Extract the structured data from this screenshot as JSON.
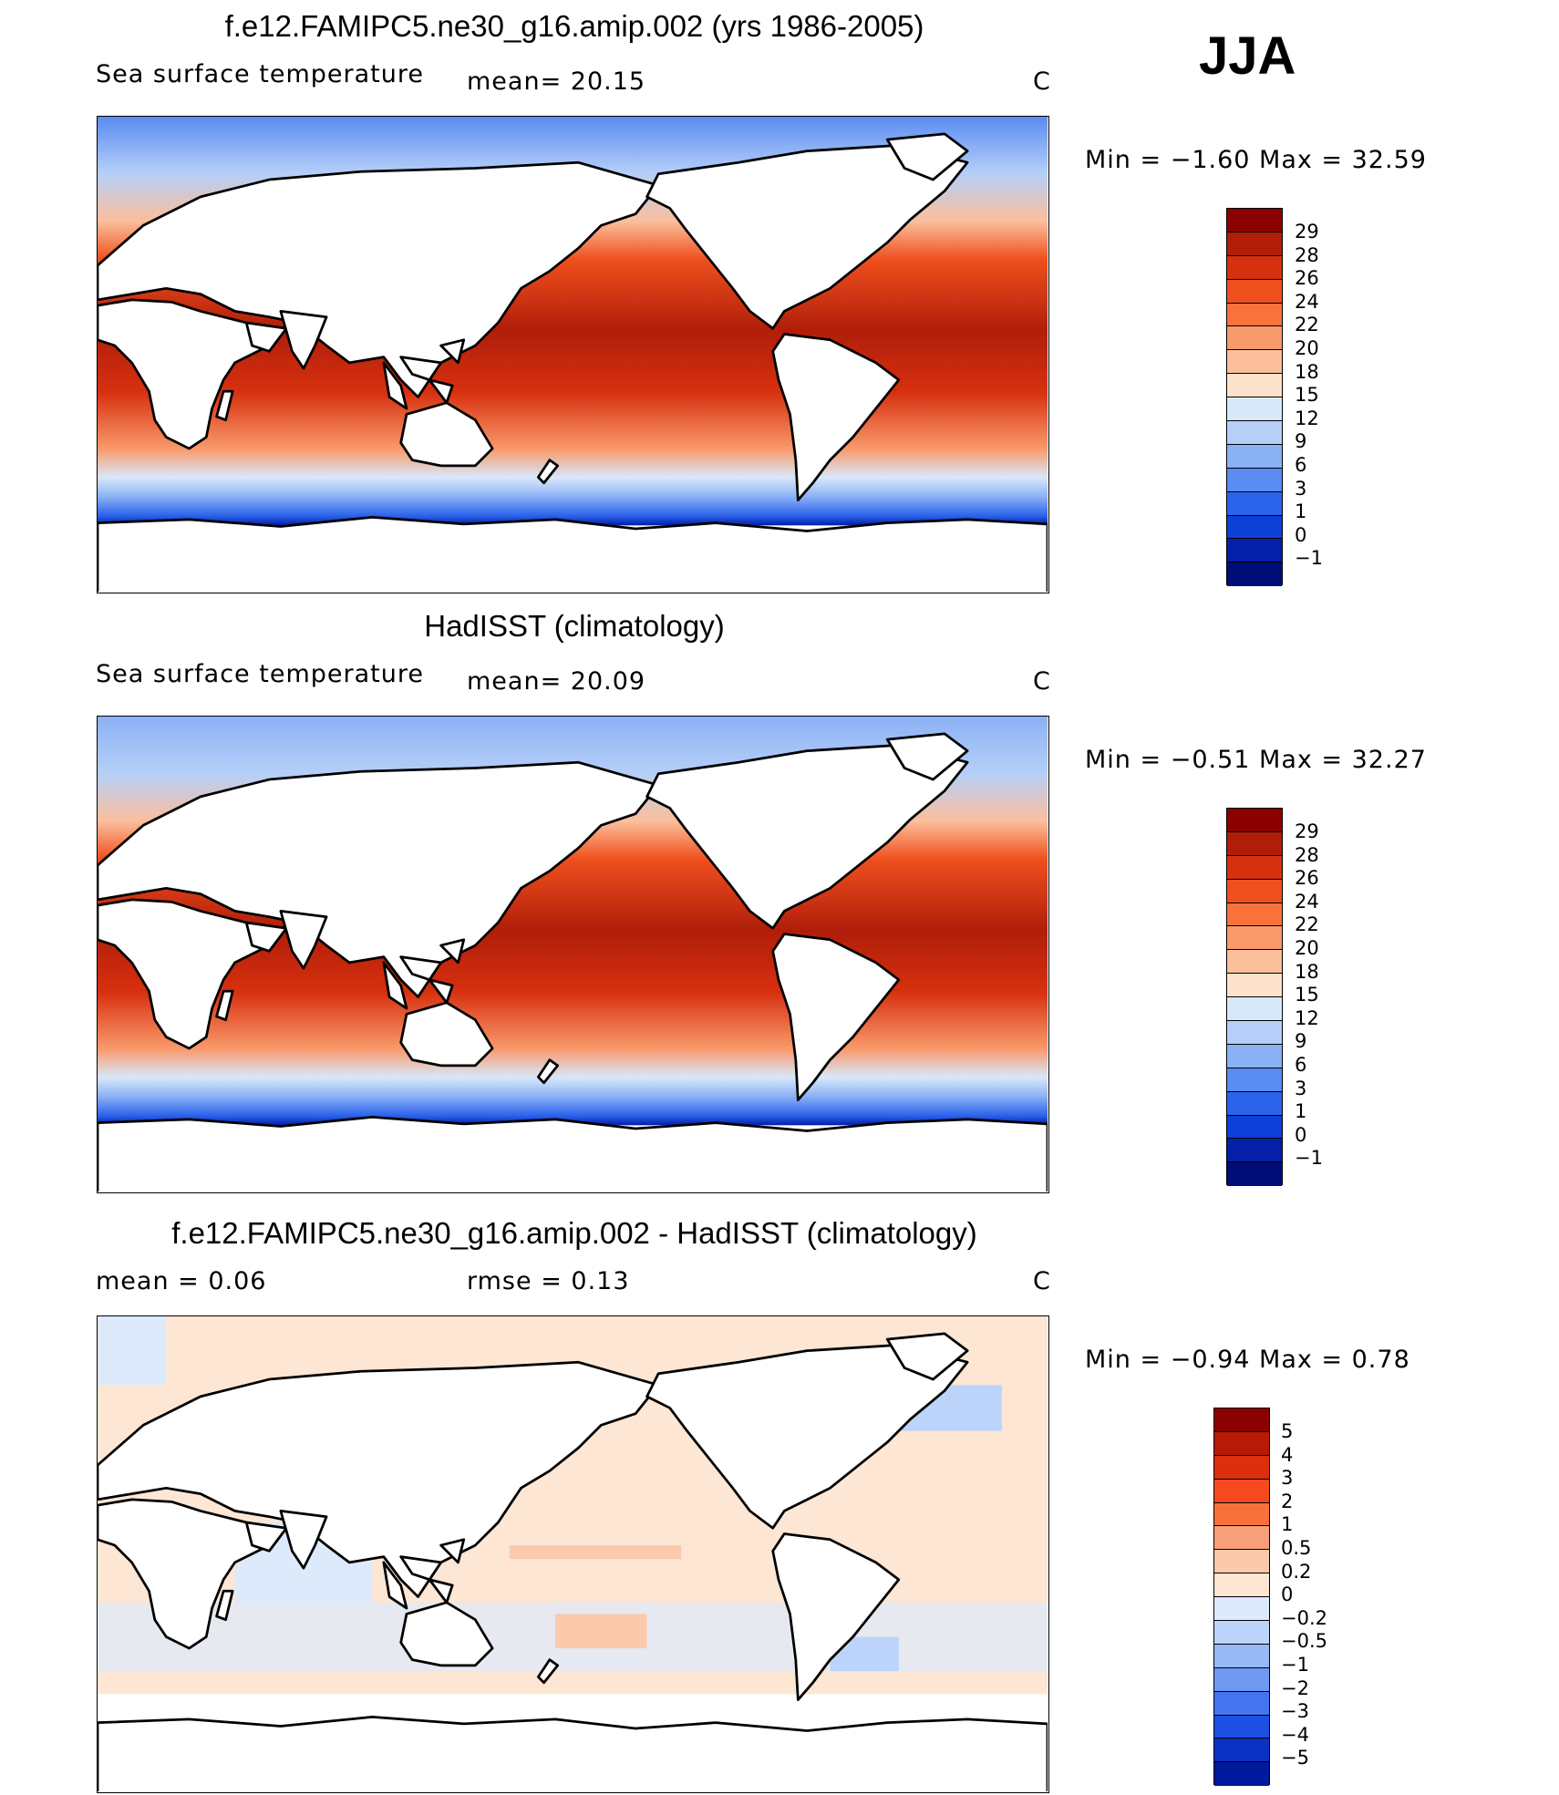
{
  "season": "JJA",
  "panels": [
    {
      "title": "f.e12.FAMIPC5.ne30_g16.amip.002 (yrs 1986-2005)",
      "variable": "Sea surface temperature",
      "mean_text": "mean=   20.15",
      "units": "C",
      "minmax": "Min  =   −1.60  Max  =    32.59"
    },
    {
      "title": "HadISST (climatology)",
      "variable": "Sea surface temperature",
      "mean_text": "mean=   20.09",
      "units": "C",
      "minmax": "Min  =   −0.51  Max  =    32.27"
    },
    {
      "title": "f.e12.FAMIPC5.ne30_g16.amip.002 - HadISST (climatology)",
      "mean_text": "mean  =     0.06",
      "rmse_text": "rmse  =     0.13",
      "units": "C",
      "minmax": "Min  =   −0.94  Max  =     0.78"
    }
  ],
  "sst_levels": [
    "29",
    "28",
    "26",
    "24",
    "22",
    "20",
    "18",
    "15",
    "12",
    "9",
    "6",
    "3",
    "1",
    "0",
    "−1"
  ],
  "diff_levels": [
    "5",
    "4",
    "3",
    "2",
    "1",
    "0.5",
    "0.2",
    "0",
    "−0.2",
    "−0.5",
    "−1",
    "−2",
    "−3",
    "−4",
    "−5"
  ],
  "sst_colors": [
    "#8b0000",
    "#b01e0a",
    "#d7300f",
    "#f0501e",
    "#f8733c",
    "#f99a6c",
    "#fbbf9c",
    "#fde3cc",
    "#d8e8fb",
    "#b5cff8",
    "#8bb1f5",
    "#5a8cf1",
    "#2c63eb",
    "#0d40d8",
    "#0420a8",
    "#000c78"
  ],
  "diff_colors": [
    "#8b0000",
    "#b81a06",
    "#dc2f0e",
    "#f44a1e",
    "#f8713d",
    "#f9a07a",
    "#fbc9ac",
    "#fde6d4",
    "#ddeafc",
    "#bcd4fa",
    "#98b9f6",
    "#6f98f2",
    "#4674ee",
    "#1e4fe4",
    "#0a31c2",
    "#00189a"
  ]
}
